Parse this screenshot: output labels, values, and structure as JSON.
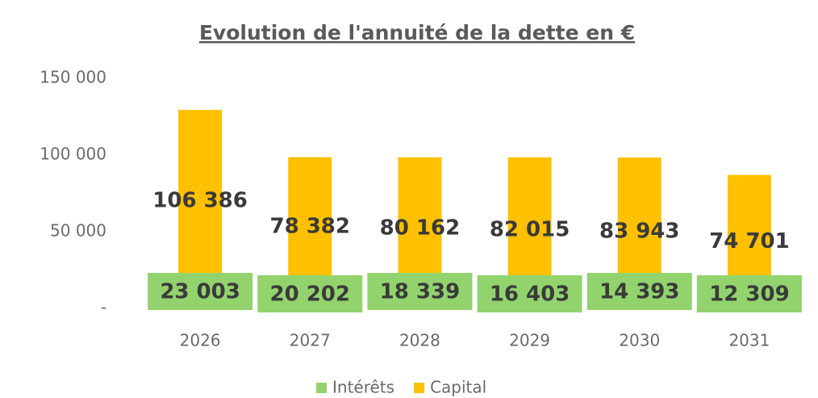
{
  "chart_data": {
    "type": "stacked_bar",
    "title": "Evolution de l'annuité de la dette en  €",
    "categories": [
      "2026",
      "2027",
      "2028",
      "2029",
      "2030",
      "2031"
    ],
    "series": [
      {
        "name": "Intérêts",
        "color": "#92d36e",
        "values": [
          23003,
          20202,
          18339,
          16403,
          14393,
          12309
        ],
        "value_labels": [
          "23 003",
          "20 202",
          "18 339",
          "16 403",
          "14 393",
          "12 309"
        ]
      },
      {
        "name": "Capital",
        "color": "#ffc000",
        "values": [
          106386,
          78382,
          80162,
          82015,
          83943,
          74701
        ],
        "value_labels": [
          "106 386",
          "78 382",
          "80 162",
          "82 015",
          "83 943",
          "74 701"
        ]
      }
    ],
    "ylim": [
      0,
      150000
    ],
    "yticks": [
      {
        "value": 0,
        "label": "-"
      },
      {
        "value": 50000,
        "label": "50 000"
      },
      {
        "value": 100000,
        "label": "100 000"
      },
      {
        "value": 150000,
        "label": "150 000"
      }
    ],
    "legend": "bottom",
    "grid": false
  }
}
